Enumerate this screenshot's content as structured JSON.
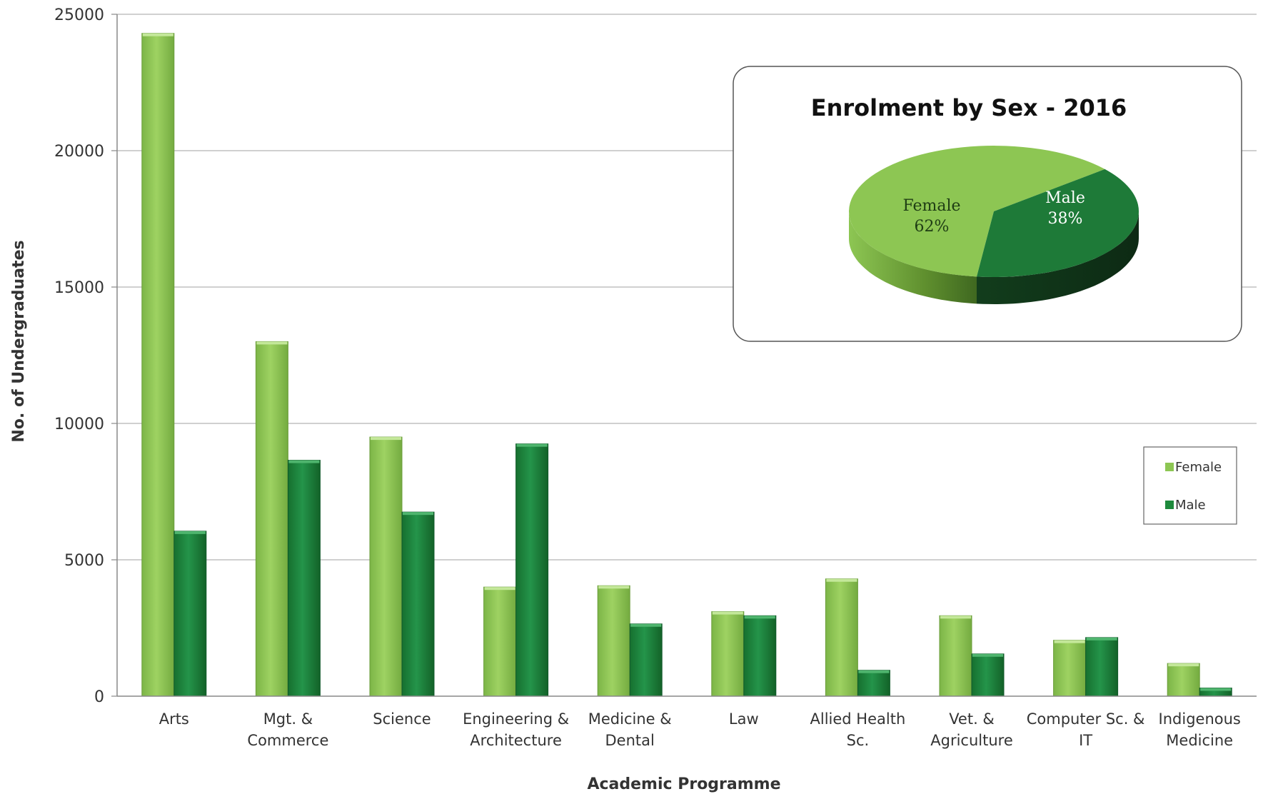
{
  "chart_data": [
    {
      "type": "bar",
      "title": "",
      "xlabel": "Academic Programme",
      "ylabel": "No. of Undergraduates",
      "ylim": [
        0,
        25000
      ],
      "yticks": [
        "0",
        "5000",
        "10000",
        "15000",
        "20000",
        "25000"
      ],
      "grid": true,
      "legend_position": "right",
      "categories": [
        [
          "Arts"
        ],
        [
          "Mgt. &",
          "Commerce"
        ],
        [
          "Science"
        ],
        [
          "Engineering &",
          "Architecture"
        ],
        [
          "Medicine &",
          "Dental"
        ],
        [
          "Law"
        ],
        [
          "Allied Health",
          "Sc."
        ],
        [
          "Vet. &",
          "Agriculture"
        ],
        [
          "Computer Sc. &",
          "IT"
        ],
        [
          "Indigenous",
          "Medicine"
        ]
      ],
      "series": [
        {
          "name": "Female",
          "color": "#8dc653",
          "values": [
            24300,
            13000,
            9500,
            4000,
            4050,
            3100,
            4300,
            2950,
            2050,
            1200
          ]
        },
        {
          "name": "Male",
          "color": "#1e8a3c",
          "values": [
            6050,
            8650,
            6750,
            9250,
            2650,
            2950,
            950,
            1550,
            2150,
            300
          ]
        }
      ]
    },
    {
      "type": "pie",
      "title": "Enrolment  by Sex - 2016",
      "slices": [
        {
          "label": "Female",
          "value": 62,
          "display": "62%",
          "color": "#8dc653"
        },
        {
          "label": "Male",
          "value": 38,
          "display": "38%",
          "color": "#1e7a38"
        }
      ]
    }
  ]
}
